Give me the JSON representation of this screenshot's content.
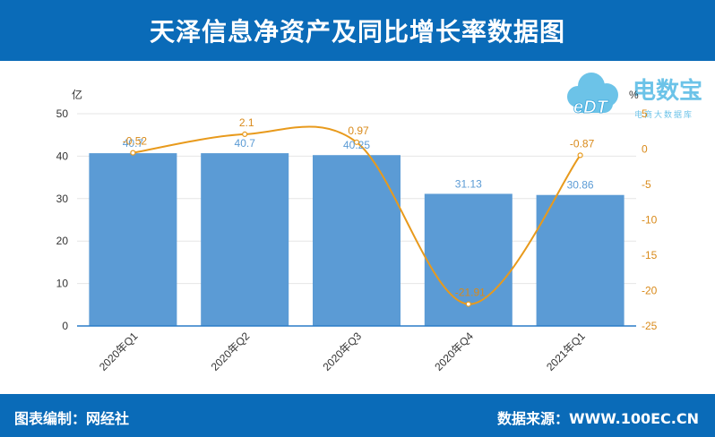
{
  "header": {
    "title": "天泽信息净资产及同比增长率数据图"
  },
  "footer": {
    "left_text": "图表编制：网经社",
    "right_text": "数据来源：WWW.100EC.CN"
  },
  "logo": {
    "text": "电数宝",
    "subtext": "电商大数据库",
    "letters": "eDT",
    "icon": "cloud-icon"
  },
  "colors": {
    "header_bg": "#0a6bb8",
    "bar": "#5b9bd5",
    "line": "#e89a1c",
    "bar_label": "#5b9bd5",
    "line_label": "#d98a1a"
  },
  "chart_data": {
    "type": "bar",
    "categories": [
      "2020年Q1",
      "2020年Q2",
      "2020年Q3",
      "2020年Q4",
      "2021年Q1"
    ],
    "series": [
      {
        "type": "bar",
        "axis": "left",
        "values": [
          40.7,
          40.7,
          40.25,
          31.13,
          30.86
        ],
        "labels": [
          "40.7",
          "40.7",
          "40.25",
          "31.13",
          "30.86"
        ]
      },
      {
        "type": "line",
        "axis": "right",
        "values": [
          -0.52,
          2.1,
          0.97,
          -21.91,
          -0.87
        ],
        "labels": [
          "-0.52",
          "2.1",
          "0.97",
          "-21.91",
          "-0.87"
        ]
      }
    ],
    "ylabel": "亿",
    "y2label": "%",
    "ylim": [
      0,
      50
    ],
    "y2lim": [
      -25,
      5
    ],
    "yticks": [
      "0",
      "10",
      "20",
      "30",
      "40",
      "50"
    ],
    "y2ticks": [
      "5",
      "0",
      "-5",
      "-10",
      "-15",
      "-20",
      "-25"
    ],
    "grid": true
  }
}
